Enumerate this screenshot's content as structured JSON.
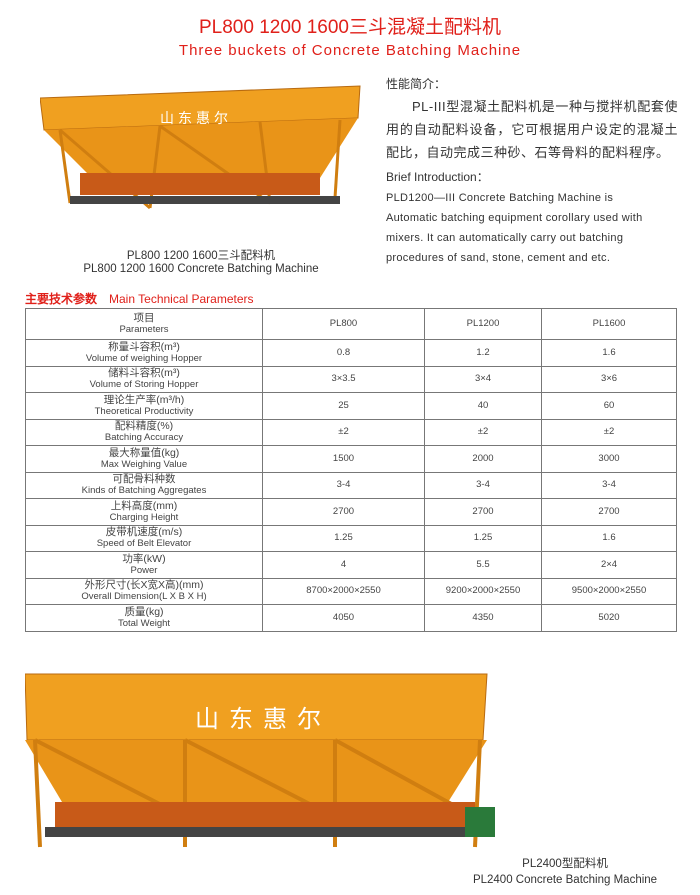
{
  "title": "PL800 1200 1600三斗混凝土配料机",
  "subtitle": "Three buckets of Concrete Batching Machine",
  "image1": {
    "sign_text": "山东惠尔",
    "caption_zh": "PL800 1200 1600三斗配料机",
    "caption_en": "PL800  1200 1600 Concrete Batching Machine"
  },
  "intro": {
    "heading_zh": "性能简介：",
    "body_zh": "PL-III型混凝土配料机是一种与搅拌机配套使用的自动配料设备，它可根据用户设定的混凝土配比，自动完成三种砂、石等骨料的配料程序。",
    "heading_en": "Brief Introduction：",
    "body_en": [
      "PLD1200—III Concrete Batching Machine is",
      "Automatic batching equipment corollary used with",
      "mixers. It can automatically carry out batching",
      "procedures of sand, stone, cement and etc."
    ]
  },
  "params": {
    "heading_zh": "主要技术参数",
    "heading_en": "Main Technical Parameters",
    "header": {
      "zh": "项目",
      "en": "Parameters",
      "cols": [
        "PL800",
        "PL1200",
        "PL1600"
      ]
    },
    "rows": [
      {
        "zh": "称量斗容积(m³)",
        "en": "Volume of weighing Hopper",
        "v": [
          "0.8",
          "1.2",
          "1.6"
        ]
      },
      {
        "zh": "储料斗容积(m³)",
        "en": "Volume of Storing Hopper",
        "v": [
          "3×3.5",
          "3×4",
          "3×6"
        ]
      },
      {
        "zh": "理论生产率(m³/h)",
        "en": "Theoretical Productivity",
        "v": [
          "25",
          "40",
          "60"
        ]
      },
      {
        "zh": "配料精度(%)",
        "en": "Batching Accuracy",
        "v": [
          "±2",
          "±2",
          "±2"
        ]
      },
      {
        "zh": "最大称量值(kg)",
        "en": "Max Weighing Value",
        "v": [
          "1500",
          "2000",
          "3000"
        ]
      },
      {
        "zh": "可配骨料种数",
        "en": "Kinds of Batching Aggregates",
        "v": [
          "3-4",
          "3-4",
          "3-4"
        ]
      },
      {
        "zh": "上料高度(mm)",
        "en": "Charging Height",
        "v": [
          "2700",
          "2700",
          "2700"
        ]
      },
      {
        "zh": "皮带机速度(m/s)",
        "en": "Speed of Belt Elevator",
        "v": [
          "1.25",
          "1.25",
          "1.6"
        ]
      },
      {
        "zh": "功率(kW)",
        "en": "Power",
        "v": [
          "4",
          "5.5",
          "2×4"
        ]
      },
      {
        "zh": "外形尺寸(长X宽X高)(mm)",
        "en": "Overall Dimension(L X B X H)",
        "v": [
          "8700×2000×2550",
          "9200×2000×2550",
          "9500×2000×2550"
        ]
      },
      {
        "zh": "质量(kg)",
        "en": "Total Weight",
        "v": [
          "4050",
          "4350",
          "5020"
        ]
      }
    ]
  },
  "image2": {
    "sign_text": "山东惠尔",
    "caption_zh": "PL2400型配料机",
    "caption_en": "PL2400 Concrete Batching Machine"
  },
  "colors": {
    "accent": "#e0201a",
    "machine": "#f0a020"
  }
}
